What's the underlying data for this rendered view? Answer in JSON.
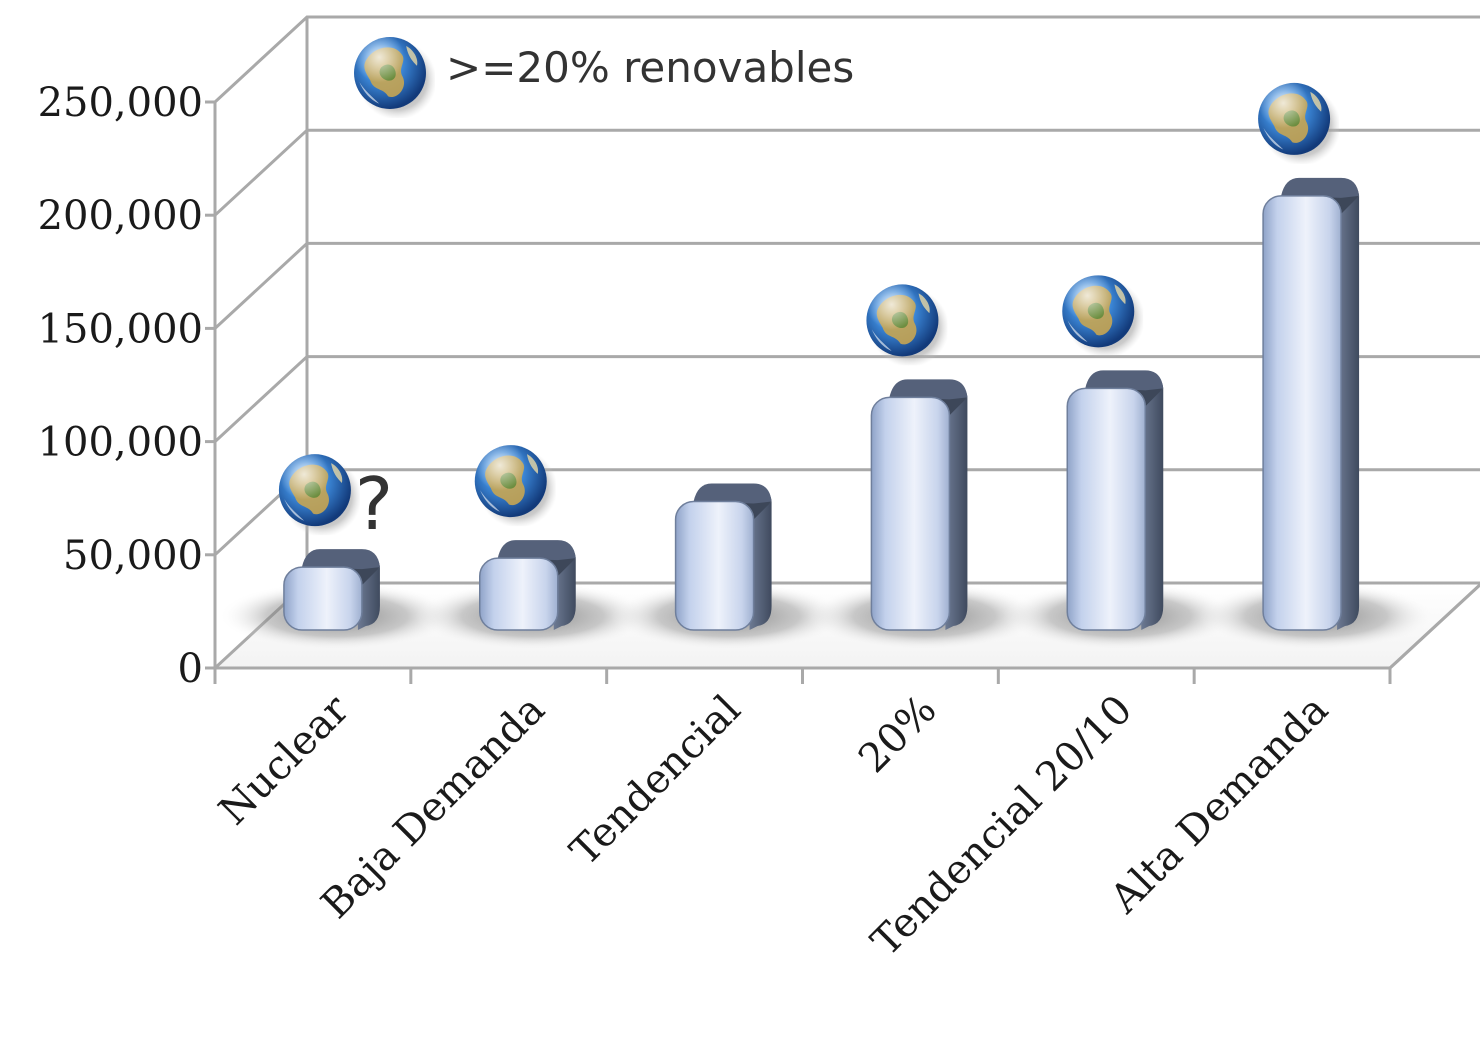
{
  "chart_data": {
    "type": "bar",
    "categories": [
      "Nuclear",
      "Baja Demanda",
      "Tendencial",
      "20%",
      "Tendencial 20/10",
      "Alta Demanda"
    ],
    "values": [
      41000,
      45000,
      70000,
      116000,
      120000,
      205000
    ],
    "renewables_20pct": [
      true,
      true,
      false,
      true,
      true,
      true
    ],
    "uncertain": [
      true,
      false,
      false,
      false,
      false,
      false
    ],
    "ylim": [
      0,
      250000
    ],
    "yticks": [
      "0",
      "50,000",
      "100,000",
      "150,000",
      "200,000",
      "250,000"
    ],
    "ytick_values": [
      0,
      50000,
      100000,
      150000,
      200000,
      250000
    ],
    "legend": {
      "label": ">=20% renovables",
      "icon": "earth-globe-icon",
      "placement": "top-left"
    },
    "annotation": "?",
    "grid": true,
    "style": "3d-bar",
    "colors": {
      "bar_light": "#eef2fb",
      "bar_mid": "#c3d1ec",
      "bar_dark": "#8fa3c8",
      "bar_side": "#4e5a70",
      "grid": "#a9a9a9",
      "floor_shadow": "#6b6b6b"
    }
  }
}
